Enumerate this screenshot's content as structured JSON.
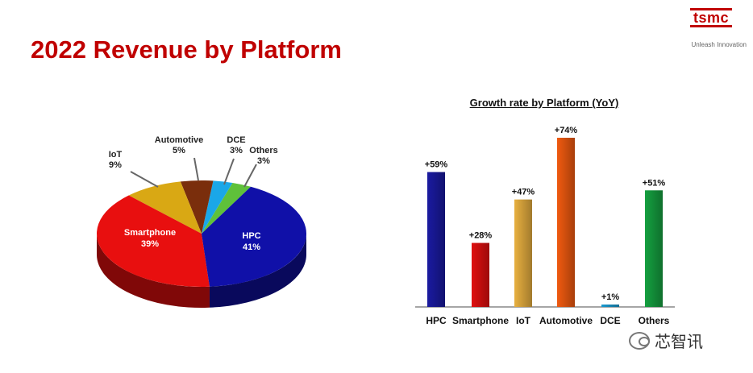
{
  "page": {
    "title": "2022 Revenue by Platform"
  },
  "logo": {
    "mark": "tsmc",
    "tagline": "Unleash Innovation"
  },
  "watermark": {
    "text": "芯智讯"
  },
  "chart_data": [
    {
      "type": "pie",
      "slices": [
        {
          "label": "HPC",
          "value": 41,
          "text": "41%",
          "color": "#1010a8"
        },
        {
          "label": "Smartphone",
          "value": 39,
          "text": "39%",
          "color": "#e80f0f"
        },
        {
          "label": "IoT",
          "value": 9,
          "text": "9%",
          "color": "#d9a814"
        },
        {
          "label": "Automotive",
          "value": 5,
          "text": "5%",
          "color": "#7a2e0c"
        },
        {
          "label": "DCE",
          "value": 3,
          "text": "3%",
          "color": "#1aa7e8"
        },
        {
          "label": "Others",
          "value": 3,
          "text": "3%",
          "color": "#5fc13a"
        }
      ]
    },
    {
      "type": "bar",
      "title": "Growth rate by Platform (YoY)",
      "categories": [
        "HPC",
        "Smartphone",
        "IoT",
        "Automotive",
        "DCE",
        "Others"
      ],
      "values": [
        59,
        28,
        47,
        74,
        1,
        51
      ],
      "value_labels": [
        "+59%",
        "+28%",
        "+47%",
        "+74%",
        "+1%",
        "+51%"
      ],
      "colors": [
        "#1a1aa0",
        "#e01010",
        "#e8b040",
        "#f05a10",
        "#1a9ad0",
        "#15a040"
      ],
      "ylim": [
        0,
        74
      ]
    }
  ]
}
